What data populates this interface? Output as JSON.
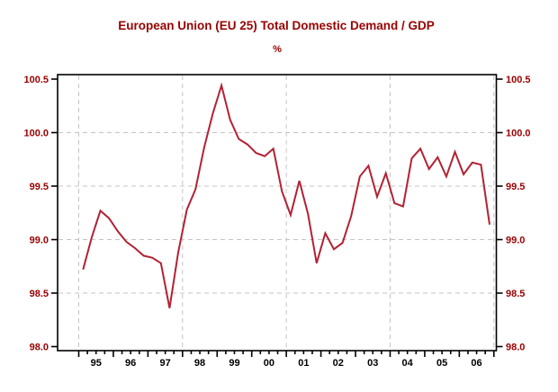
{
  "chart_data": {
    "type": "line",
    "title": "European Union (EU 25) Total Domestic Demand / GDP",
    "subtitle": "%",
    "frequency": "quarterly",
    "x_base_year": 1995,
    "x_year_labels": [
      "95",
      "96",
      "97",
      "98",
      "99",
      "00",
      "01",
      "02",
      "03",
      "04",
      "05",
      "06"
    ],
    "categories": [
      "1995Q1",
      "1995Q2",
      "1995Q3",
      "1995Q4",
      "1996Q1",
      "1996Q2",
      "1996Q3",
      "1996Q4",
      "1997Q1",
      "1997Q2",
      "1997Q3",
      "1997Q4",
      "1998Q1",
      "1998Q2",
      "1998Q3",
      "1998Q4",
      "1999Q1",
      "1999Q2",
      "1999Q3",
      "1999Q4",
      "2000Q1",
      "2000Q2",
      "2000Q3",
      "2000Q4",
      "2001Q1",
      "2001Q2",
      "2001Q3",
      "2001Q4",
      "2002Q1",
      "2002Q2",
      "2002Q3",
      "2002Q4",
      "2003Q1",
      "2003Q2",
      "2003Q3",
      "2003Q4",
      "2004Q1",
      "2004Q2",
      "2004Q3",
      "2004Q4",
      "2005Q1",
      "2005Q2",
      "2005Q3",
      "2005Q4",
      "2006Q1",
      "2006Q2",
      "2006Q3",
      "2006Q4"
    ],
    "values": [
      98.72,
      99.02,
      99.27,
      99.2,
      99.08,
      98.98,
      98.92,
      98.85,
      98.83,
      98.78,
      98.36,
      98.88,
      99.28,
      99.47,
      99.86,
      100.18,
      100.44,
      100.12,
      99.94,
      99.89,
      99.81,
      99.78,
      99.85,
      99.45,
      99.23,
      99.55,
      99.24,
      98.78,
      99.06,
      98.91,
      98.97,
      99.22,
      99.59,
      99.69,
      99.4,
      99.62,
      99.34,
      99.31,
      99.76,
      99.85,
      99.66,
      99.77,
      99.59,
      99.82,
      99.61,
      99.72,
      99.7,
      99.14
    ],
    "y_ticks": [
      100.5,
      100.0,
      99.5,
      99.0,
      98.5,
      98.0
    ],
    "ylim": [
      98.0,
      100.5
    ],
    "grid": {
      "horizontal_at": [
        100.0,
        99.5,
        99.0,
        98.5
      ],
      "vertical_at_january_of": [
        1995,
        1998,
        2001,
        2004,
        2007
      ],
      "style": "dashed"
    },
    "legend": "none",
    "colors": {
      "line": "#B22234",
      "title": "#990000",
      "y_axis_labels": "#990000",
      "x_axis_labels": "#000000",
      "gridline": "#c4c4c4",
      "axis": "#000000",
      "background": "#ffffff"
    }
  }
}
